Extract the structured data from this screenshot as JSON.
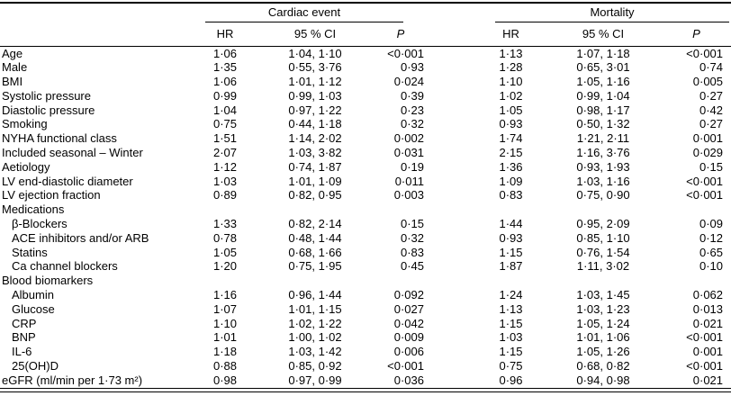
{
  "table": {
    "groups": [
      {
        "label": "Cardiac event"
      },
      {
        "label": "Mortality"
      }
    ],
    "columns": {
      "hr": "HR",
      "ci": "95 % CI",
      "p": "P"
    },
    "rows": [
      {
        "label": "Age",
        "indent": 0,
        "section": false,
        "ce": {
          "hr": "1·06",
          "ci": "1·04, 1·10",
          "p": "<0·001"
        },
        "mort": {
          "hr": "1·13",
          "ci": "1·07, 1·18",
          "p": "<0·001"
        }
      },
      {
        "label": "Male",
        "indent": 0,
        "section": false,
        "ce": {
          "hr": "1·35",
          "ci": "0·55, 3·76",
          "p": "0·93"
        },
        "mort": {
          "hr": "1·28",
          "ci": "0·65, 3·01",
          "p": "0·74"
        }
      },
      {
        "label": "BMI",
        "indent": 0,
        "section": false,
        "ce": {
          "hr": "1·06",
          "ci": "1·01, 1·12",
          "p": "0·024"
        },
        "mort": {
          "hr": "1·10",
          "ci": "1·05, 1·16",
          "p": "0·005"
        }
      },
      {
        "label": "Systolic pressure",
        "indent": 0,
        "section": false,
        "ce": {
          "hr": "0·99",
          "ci": "0·99, 1·03",
          "p": "0·39"
        },
        "mort": {
          "hr": "1·02",
          "ci": "0·99, 1·04",
          "p": "0·27"
        }
      },
      {
        "label": "Diastolic pressure",
        "indent": 0,
        "section": false,
        "ce": {
          "hr": "1·04",
          "ci": "0·97, 1·22",
          "p": "0·23"
        },
        "mort": {
          "hr": "1·05",
          "ci": "0·98, 1·17",
          "p": "0·42"
        }
      },
      {
        "label": "Smoking",
        "indent": 0,
        "section": false,
        "ce": {
          "hr": "0·75",
          "ci": "0·44, 1·18",
          "p": "0·32"
        },
        "mort": {
          "hr": "0·93",
          "ci": "0·50, 1·32",
          "p": "0·27"
        }
      },
      {
        "label": "NYHA functional class",
        "indent": 0,
        "section": false,
        "ce": {
          "hr": "1·51",
          "ci": "1·14, 2·02",
          "p": "0·002"
        },
        "mort": {
          "hr": "1·74",
          "ci": "1·21, 2·11",
          "p": "0·001"
        }
      },
      {
        "label": "Included seasonal – Winter",
        "indent": 0,
        "section": false,
        "ce": {
          "hr": "2·07",
          "ci": "1·03, 3·82",
          "p": "0·031"
        },
        "mort": {
          "hr": "2·15",
          "ci": "1·16, 3·76",
          "p": "0·029"
        }
      },
      {
        "label": "Aetiology",
        "indent": 0,
        "section": false,
        "ce": {
          "hr": "1·12",
          "ci": "0·74, 1·87",
          "p": "0·19"
        },
        "mort": {
          "hr": "1·36",
          "ci": "0·93, 1·93",
          "p": "0·15"
        }
      },
      {
        "label": "LV end-diastolic diameter",
        "indent": 0,
        "section": false,
        "ce": {
          "hr": "1·03",
          "ci": "1·01, 1·09",
          "p": "0·011"
        },
        "mort": {
          "hr": "1·09",
          "ci": "1·03, 1·16",
          "p": "<0·001"
        }
      },
      {
        "label": "LV ejection fraction",
        "indent": 0,
        "section": false,
        "ce": {
          "hr": "0·89",
          "ci": "0·82, 0·95",
          "p": "0·003"
        },
        "mort": {
          "hr": "0·83",
          "ci": "0·75, 0·90",
          "p": "<0·001"
        }
      },
      {
        "label": "Medications",
        "indent": 0,
        "section": true
      },
      {
        "label": "β-Blockers",
        "indent": 1,
        "section": false,
        "ce": {
          "hr": "1·33",
          "ci": "0·82, 2·14",
          "p": "0·15"
        },
        "mort": {
          "hr": "1·44",
          "ci": "0·95, 2·09",
          "p": "0·09"
        }
      },
      {
        "label": "ACE inhibitors and/or ARB",
        "indent": 1,
        "section": false,
        "ce": {
          "hr": "0·78",
          "ci": "0·48, 1·44",
          "p": "0·32"
        },
        "mort": {
          "hr": "0·93",
          "ci": "0·85, 1·10",
          "p": "0·12"
        }
      },
      {
        "label": "Statins",
        "indent": 1,
        "section": false,
        "ce": {
          "hr": "1·05",
          "ci": "0·68, 1·66",
          "p": "0·83"
        },
        "mort": {
          "hr": "1·15",
          "ci": "0·76, 1·54",
          "p": "0·65"
        }
      },
      {
        "label": "Ca channel blockers",
        "indent": 1,
        "section": false,
        "ce": {
          "hr": "1·20",
          "ci": "0·75, 1·95",
          "p": "0·45"
        },
        "mort": {
          "hr": "1·87",
          "ci": "1·11, 3·02",
          "p": "0·10"
        }
      },
      {
        "label": "Blood biomarkers",
        "indent": 0,
        "section": true
      },
      {
        "label": "Albumin",
        "indent": 1,
        "section": false,
        "ce": {
          "hr": "1·16",
          "ci": "0·96, 1·44",
          "p": "0·092"
        },
        "mort": {
          "hr": "1·24",
          "ci": "1·03, 1·45",
          "p": "0·062"
        }
      },
      {
        "label": "Glucose",
        "indent": 1,
        "section": false,
        "ce": {
          "hr": "1·07",
          "ci": "1·01, 1·15",
          "p": "0·027"
        },
        "mort": {
          "hr": "1·13",
          "ci": "1·03, 1·23",
          "p": "0·013"
        }
      },
      {
        "label": "CRP",
        "indent": 1,
        "section": false,
        "ce": {
          "hr": "1·10",
          "ci": "1·02, 1·22",
          "p": "0·042"
        },
        "mort": {
          "hr": "1·15",
          "ci": "1·05, 1·24",
          "p": "0·021"
        }
      },
      {
        "label": "BNP",
        "indent": 1,
        "section": false,
        "ce": {
          "hr": "1·01",
          "ci": "1·00, 1·02",
          "p": "0·009"
        },
        "mort": {
          "hr": "1·03",
          "ci": "1·01, 1·06",
          "p": "<0·001"
        }
      },
      {
        "label": "IL-6",
        "indent": 1,
        "section": false,
        "ce": {
          "hr": "1·18",
          "ci": "1·03, 1·42",
          "p": "0·006"
        },
        "mort": {
          "hr": "1·15",
          "ci": "1·05, 1·26",
          "p": "0·001"
        }
      },
      {
        "label": "25(OH)D",
        "indent": 1,
        "section": false,
        "ce": {
          "hr": "0·88",
          "ci": "0·85, 0·92",
          "p": "<0·001"
        },
        "mort": {
          "hr": "0·75",
          "ci": "0·68, 0·82",
          "p": "<0·001"
        }
      },
      {
        "label": "eGFR (ml/min per 1·73 m²)",
        "indent": 0,
        "section": false,
        "ce": {
          "hr": "0·98",
          "ci": "0·97, 0·99",
          "p": "0·036"
        },
        "mort": {
          "hr": "0·96",
          "ci": "0·94, 0·98",
          "p": "0·021"
        }
      }
    ],
    "colors": {
      "text": "#000000",
      "background": "#ffffff",
      "rule": "#000000"
    }
  }
}
